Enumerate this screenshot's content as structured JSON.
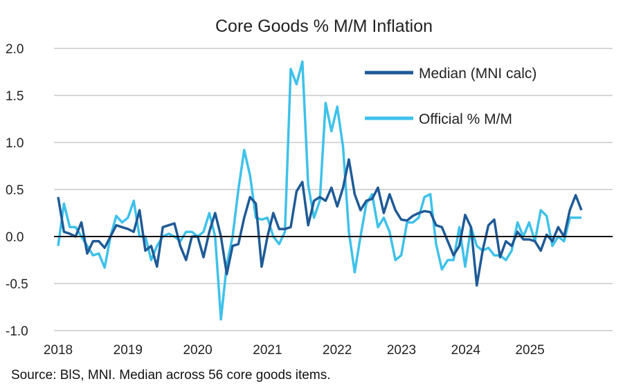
{
  "chart_data": {
    "type": "line",
    "title": "Core Goods % M/M Inflation",
    "xlabel": "",
    "ylabel": "",
    "ylim": [
      -1.0,
      2.0
    ],
    "y_ticks": [
      "2.0",
      "1.5",
      "1.0",
      "0.5",
      "0.0",
      "-0.5",
      "-1.0"
    ],
    "x_ticks": [
      "2018",
      "2019",
      "2020",
      "2021",
      "2022",
      "2023",
      "2024",
      "2025"
    ],
    "x_start": "2018-01",
    "x_frequency": "monthly",
    "grid": "horizontal",
    "legend_position": "top-right",
    "series": [
      {
        "name": "Median (MNI calc)",
        "color": "#1f5a96",
        "values": [
          0.42,
          0.05,
          0.03,
          0.0,
          0.15,
          -0.18,
          -0.05,
          -0.05,
          -0.12,
          0.0,
          0.12,
          0.1,
          0.08,
          0.05,
          0.28,
          -0.15,
          -0.1,
          -0.32,
          0.1,
          0.12,
          0.14,
          -0.1,
          -0.25,
          0.0,
          0.0,
          -0.22,
          0.05,
          0.25,
          0.0,
          -0.4,
          -0.1,
          -0.08,
          0.2,
          0.42,
          0.35,
          -0.32,
          0.0,
          0.25,
          0.08,
          0.08,
          0.1,
          0.48,
          0.58,
          0.12,
          0.38,
          0.42,
          0.38,
          0.52,
          0.32,
          0.52,
          0.82,
          0.45,
          0.28,
          0.38,
          0.4,
          0.52,
          0.25,
          0.45,
          0.28,
          0.18,
          0.17,
          0.22,
          0.25,
          0.27,
          0.26,
          0.12,
          0.1,
          -0.05,
          -0.2,
          -0.1,
          0.23,
          0.1,
          -0.52,
          -0.15,
          0.12,
          0.18,
          -0.22,
          -0.05,
          -0.1,
          0.05,
          -0.03,
          -0.03,
          -0.05,
          -0.15,
          0.02,
          -0.05,
          0.1,
          0.0,
          0.28,
          0.44,
          0.28
        ]
      },
      {
        "name": "Official % M/M",
        "color": "#3ec1ea",
        "values": [
          -0.1,
          0.35,
          0.1,
          0.1,
          0.0,
          -0.1,
          -0.2,
          -0.18,
          -0.33,
          0.0,
          0.22,
          0.15,
          0.2,
          0.38,
          0.0,
          0.0,
          -0.25,
          -0.1,
          0.0,
          0.03,
          0.0,
          -0.05,
          0.05,
          0.05,
          0.0,
          0.05,
          0.25,
          0.0,
          -0.88,
          -0.3,
          0.0,
          0.5,
          0.92,
          0.65,
          0.2,
          0.18,
          0.2,
          0.0,
          -0.08,
          0.05,
          1.78,
          1.62,
          1.86,
          0.55,
          0.2,
          0.38,
          1.42,
          1.12,
          1.38,
          0.95,
          0.05,
          -0.38,
          0.0,
          0.35,
          0.45,
          0.1,
          0.2,
          0.05,
          -0.25,
          -0.2,
          0.15,
          0.15,
          0.2,
          0.42,
          0.45,
          -0.08,
          -0.35,
          -0.25,
          -0.25,
          0.1,
          -0.32,
          0.1,
          -0.1,
          -0.15,
          -0.12,
          -0.2,
          -0.2,
          -0.25,
          -0.15,
          0.15,
          0.0,
          0.15,
          -0.05,
          0.28,
          0.22,
          -0.1,
          0.0,
          -0.05,
          0.2,
          0.2,
          0.2
        ]
      }
    ]
  },
  "source": "Source: BlS, MNI.  Median across 56 core goods items."
}
